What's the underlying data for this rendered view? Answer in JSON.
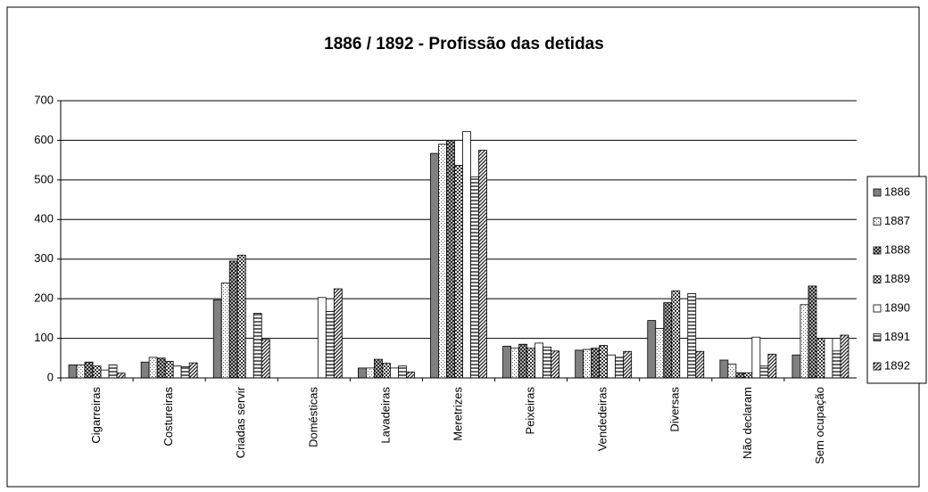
{
  "chart_data": {
    "type": "bar",
    "title": "1886 / 1892 - Profissão das detidas",
    "categories": [
      "Cigarreiras",
      "Costureiras",
      "Criadas servir",
      "Domésticas",
      "Lavadeiras",
      "Meretrizes",
      "Peixeiras",
      "Vendedeiras",
      "Diversas",
      "Não declaram",
      "Sem ocupação"
    ],
    "series": [
      {
        "name": "1886",
        "color": "#808080",
        "values": [
          33,
          40,
          197,
          null,
          25,
          567,
          80,
          70,
          145,
          45,
          58
        ]
      },
      {
        "name": "1887",
        "color": "#555555",
        "values": [
          33,
          52,
          240,
          null,
          25,
          590,
          75,
          72,
          125,
          35,
          185
        ]
      },
      {
        "name": "1888",
        "color": "#222222",
        "values": [
          40,
          50,
          295,
          null,
          47,
          600,
          85,
          75,
          190,
          13,
          232
        ]
      },
      {
        "name": "1889",
        "color": "#333333",
        "values": [
          30,
          42,
          310,
          null,
          37,
          537,
          75,
          82,
          220,
          13,
          100
        ]
      },
      {
        "name": "1890",
        "color": "#ffffff",
        "values": [
          20,
          30,
          100,
          203,
          25,
          622,
          88,
          58,
          100,
          103,
          100
        ]
      },
      {
        "name": "1891",
        "color": "#333333",
        "values": [
          33,
          28,
          163,
          168,
          30,
          508,
          78,
          52,
          213,
          30,
          68
        ]
      },
      {
        "name": "1892",
        "color": "#222222",
        "values": [
          12,
          38,
          97,
          225,
          15,
          575,
          68,
          67,
          67,
          60,
          108
        ]
      }
    ],
    "ylim": [
      0,
      700
    ],
    "yticks": [
      0,
      100,
      200,
      300,
      400,
      500,
      600,
      700
    ],
    "grid": true,
    "legend": "right"
  }
}
